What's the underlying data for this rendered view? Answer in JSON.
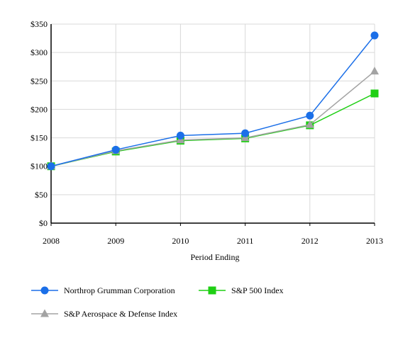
{
  "chart_data": {
    "type": "line",
    "title": "",
    "xlabel": "Period Ending",
    "ylabel": "",
    "categories": [
      "2008",
      "2009",
      "2010",
      "2011",
      "2012",
      "2013"
    ],
    "y_tick_labels": [
      "$0",
      "$50",
      "$100",
      "$150",
      "$200",
      "$250",
      "$300",
      "$350"
    ],
    "y_ticks": [
      0,
      50,
      100,
      150,
      200,
      250,
      300,
      350
    ],
    "ylim": [
      0,
      350
    ],
    "grid": true,
    "legend_position": "bottom",
    "series": [
      {
        "name": "Northrop Grumman Corporation",
        "values": [
          100,
          129,
          154,
          158,
          189,
          330
        ],
        "color": "#1b6fe8",
        "marker": "circle"
      },
      {
        "name": "S&P 500 Index",
        "values": [
          100,
          126,
          145,
          149,
          172,
          228
        ],
        "color": "#1fcf14",
        "marker": "square"
      },
      {
        "name": "S&P Aerospace & Defense Index",
        "values": [
          100,
          127,
          146,
          150,
          173,
          267
        ],
        "color": "#a3a3a3",
        "marker": "triangle"
      }
    ]
  }
}
